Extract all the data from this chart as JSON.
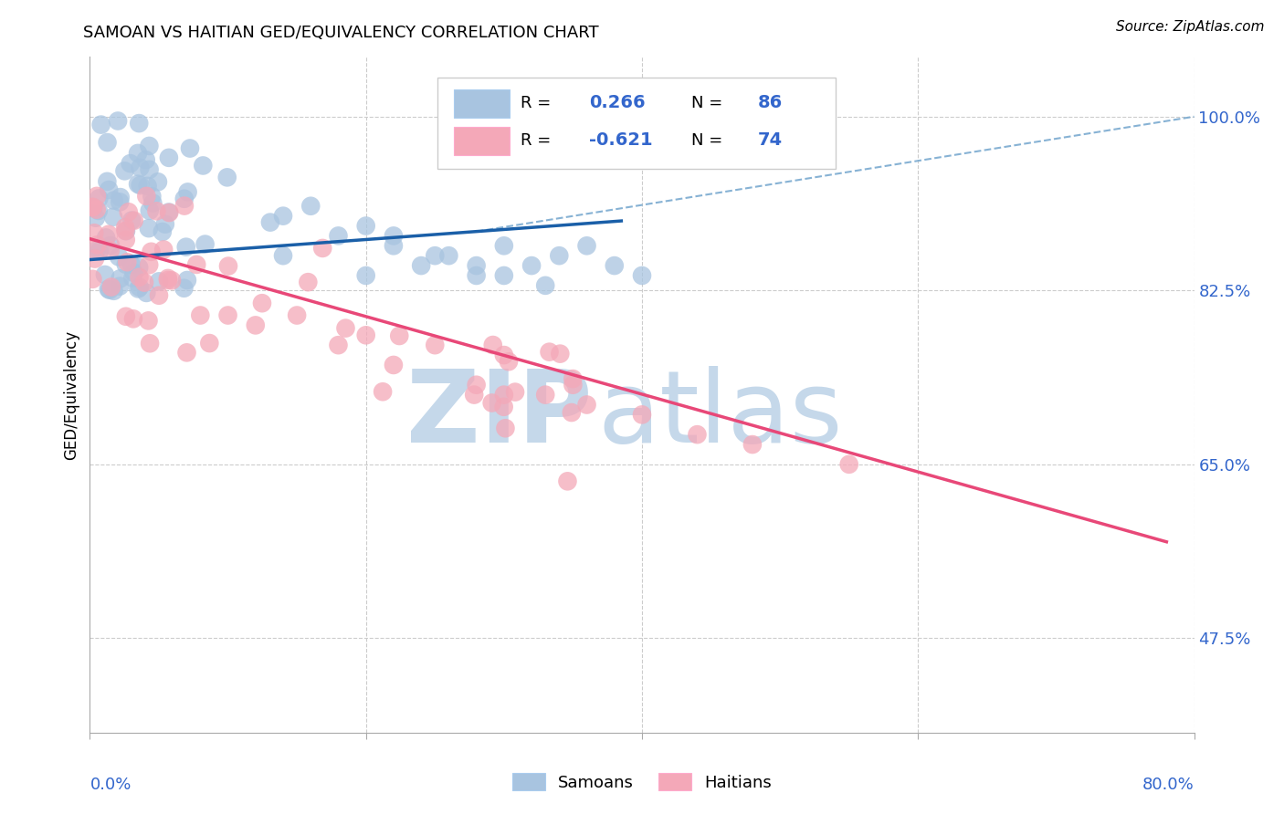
{
  "title": "SAMOAN VS HAITIAN GED/EQUIVALENCY CORRELATION CHART",
  "source": "Source: ZipAtlas.com",
  "ylabel": "GED/Equivalency",
  "yticks": [
    0.475,
    0.65,
    0.825,
    1.0
  ],
  "ytick_labels": [
    "47.5%",
    "65.0%",
    "82.5%",
    "100.0%"
  ],
  "xlim": [
    0.0,
    0.8
  ],
  "ylim": [
    0.38,
    1.06
  ],
  "samoans_color": "#a8c4e0",
  "haitians_color": "#f4a8b8",
  "samoan_line_color": "#1a5fa8",
  "haitian_line_color": "#e84878",
  "dashed_line_color": "#7aaad0",
  "watermark_zip_color": "#c5d8ea",
  "watermark_atlas_color": "#c5d8ea",
  "R_samoan": 0.266,
  "N_samoan": 86,
  "R_haitian": -0.621,
  "N_haitian": 74,
  "background_color": "#ffffff",
  "grid_color": "#cccccc",
  "axis_color": "#aaaaaa",
  "label_color": "#3366cc",
  "title_fontsize": 13,
  "source_fontsize": 11,
  "tick_fontsize": 13,
  "ylabel_fontsize": 12
}
